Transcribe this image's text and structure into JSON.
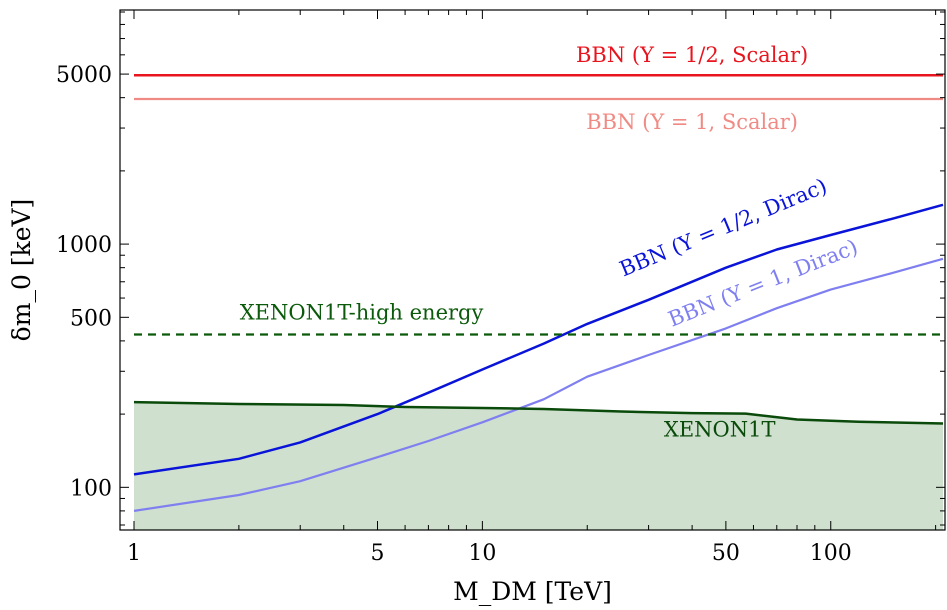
{
  "chart_data": {
    "type": "line",
    "x_scale": "log",
    "y_scale": "log",
    "xlim": [
      1,
      210
    ],
    "ylim": [
      70,
      9000
    ],
    "xlabel": "M_DM [TeV]",
    "ylabel": "δm_0 [keV]",
    "x_ticks": [
      {
        "value": 1,
        "label": "1"
      },
      {
        "value": 5,
        "label": "5"
      },
      {
        "value": 10,
        "label": "10"
      },
      {
        "value": 50,
        "label": "50"
      },
      {
        "value": 100,
        "label": "100"
      }
    ],
    "y_ticks": [
      {
        "value": 100,
        "label": "100"
      },
      {
        "value": 500,
        "label": "500"
      },
      {
        "value": 1000,
        "label": "1000"
      },
      {
        "value": 5000,
        "label": "5000"
      }
    ],
    "grid": false,
    "series": [
      {
        "id": "bbn-half-scalar",
        "name": "BBN (Y = 1/2, Scalar)",
        "color": "#e8141e",
        "dash": "",
        "width": 2.5,
        "x": [
          1,
          210
        ],
        "y": [
          4950,
          4950
        ]
      },
      {
        "id": "bbn-one-scalar",
        "name": "BBN (Y = 1, Scalar)",
        "color": "#f08a84",
        "dash": "",
        "width": 2.2,
        "x": [
          1,
          210
        ],
        "y": [
          3950,
          3950
        ]
      },
      {
        "id": "bbn-half-dirac",
        "name": "BBN (Y = 1/2, Dirac)",
        "color": "#0a14d8",
        "dash": "",
        "width": 2.5,
        "x": [
          1,
          2,
          3,
          5,
          7,
          10,
          15,
          20,
          30,
          50,
          70,
          100,
          150,
          210
        ],
        "y": [
          113,
          131,
          153,
          200,
          245,
          305,
          390,
          470,
          590,
          800,
          950,
          1090,
          1270,
          1450
        ]
      },
      {
        "id": "bbn-one-dirac",
        "name": "BBN (Y = 1, Dirac)",
        "color": "#7f7ff0",
        "dash": "",
        "width": 2.2,
        "x": [
          1,
          2,
          3,
          5,
          7,
          10,
          15,
          20,
          30,
          50,
          70,
          100,
          150,
          210
        ],
        "y": [
          80,
          93,
          106,
          133,
          155,
          185,
          230,
          285,
          350,
          450,
          545,
          650,
          760,
          870
        ]
      },
      {
        "id": "xenon1t-high-energy",
        "name": "XENON1T-high energy",
        "color": "#0b5a0b",
        "dash": "8,6",
        "width": 2.3,
        "x": [
          1,
          210
        ],
        "y": [
          425,
          425
        ]
      },
      {
        "id": "xenon1t",
        "name": "XENON1T",
        "color": "#0a4a0a",
        "dash": "",
        "width": 2.5,
        "fill": "#cfe0cf",
        "x": [
          1,
          2,
          4,
          6,
          10,
          15,
          25,
          40,
          57,
          80,
          120,
          210
        ],
        "y": [
          224,
          220,
          218,
          214,
          212,
          210,
          205,
          202,
          201,
          190,
          186,
          183
        ]
      }
    ],
    "labels": [
      {
        "series": "bbn-half-scalar",
        "text": "BBN (Y = 1/2, Scalar)",
        "x": 40,
        "y": 5600,
        "rotate": false
      },
      {
        "series": "bbn-one-scalar",
        "text": "BBN (Y = 1, Scalar)",
        "x": 40,
        "y": 2980,
        "rotate": false
      },
      {
        "series": "bbn-half-dirac",
        "text": "BBN (Y = 1/2, Dirac)",
        "x": 50,
        "y": 1100,
        "rotate": true
      },
      {
        "series": "bbn-one-dirac",
        "text": "BBN (Y = 1, Dirac)",
        "x": 65,
        "y": 650,
        "rotate": true
      },
      {
        "series": "xenon1t-high-energy",
        "text": "XENON1T-high energy",
        "x": 4.5,
        "y": 490,
        "rotate": false
      },
      {
        "series": "xenon1t",
        "text": "XENON1T",
        "x": 48,
        "y": 162,
        "rotate": false
      }
    ]
  }
}
